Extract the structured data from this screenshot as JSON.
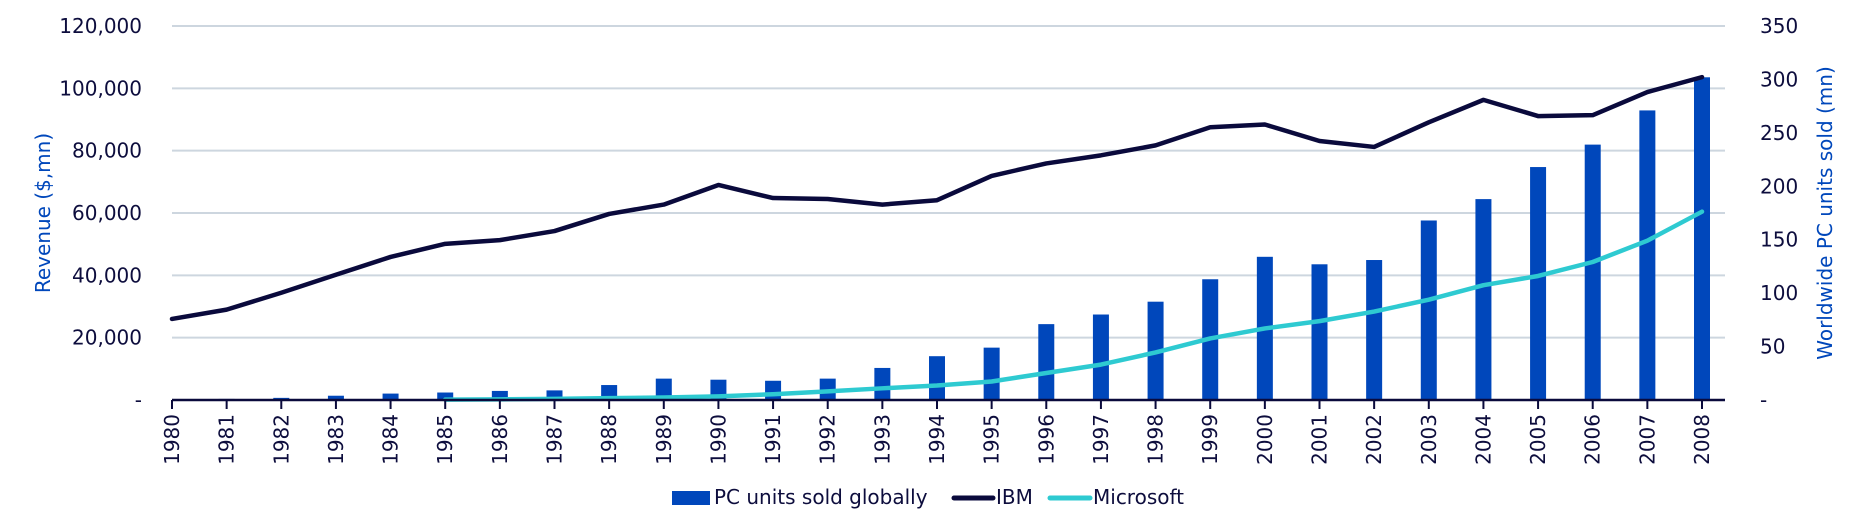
{
  "chart_data": {
    "type": "bar+line",
    "title": "",
    "categories": [
      "1980",
      "1981",
      "1982",
      "1983",
      "1984",
      "1985",
      "1986",
      "1987",
      "1988",
      "1989",
      "1990",
      "1991",
      "1992",
      "1993",
      "1994",
      "1995",
      "1996",
      "1997",
      "1998",
      "1999",
      "2000",
      "2001",
      "2002",
      "2003",
      "2004",
      "2005",
      "2006",
      "2007",
      "2008"
    ],
    "y_left": {
      "label": "Revenue ($,mn)",
      "range": [
        0,
        120000
      ],
      "ticks": [
        0,
        20000,
        40000,
        60000,
        80000,
        100000,
        120000
      ],
      "tick_labels": [
        "-",
        "20,000",
        "40,000",
        "60,000",
        "80,000",
        "100,000",
        "120,000"
      ]
    },
    "y_right": {
      "label": "Worldwide PC units sold (mn)",
      "range": [
        0,
        350
      ],
      "ticks": [
        0,
        50,
        100,
        150,
        200,
        250,
        300,
        350
      ],
      "tick_labels": [
        "-",
        "50",
        "100",
        "150",
        "200",
        "250",
        "300",
        "350"
      ]
    },
    "grid": true,
    "legend_position": "bottom-center",
    "series": [
      {
        "name": "PC units sold globally",
        "type": "bar",
        "axis": "right",
        "color": "#0047bb",
        "values": [
          0,
          1,
          2,
          4,
          6,
          7,
          8.5,
          9,
          14,
          20,
          19,
          18,
          20,
          30,
          41,
          49,
          71,
          80,
          92,
          113,
          134,
          127,
          131,
          168,
          188,
          218,
          239,
          271,
          302
        ]
      },
      {
        "name": "IBM",
        "type": "line",
        "axis": "left",
        "color": "#0a0a3c",
        "values": [
          26000,
          29000,
          34400,
          40200,
          45900,
          50100,
          51300,
          54200,
          59700,
          62700,
          69000,
          64800,
          64500,
          62700,
          64100,
          71900,
          75900,
          78500,
          81700,
          87500,
          88400,
          83100,
          81200,
          89100,
          96300,
          91100,
          91400,
          98800,
          103600
        ]
      },
      {
        "name": "Microsoft",
        "type": "line",
        "axis": "left",
        "color": "#2ecad1",
        "start_index": 5,
        "values": [
          null,
          null,
          null,
          null,
          null,
          140,
          200,
          350,
          590,
          800,
          1180,
          1840,
          2760,
          3750,
          4650,
          5940,
          8670,
          11360,
          15260,
          19750,
          22960,
          25300,
          28370,
          32190,
          36840,
          39790,
          44280,
          51120,
          60420
        ]
      }
    ]
  },
  "legend": {
    "items": [
      {
        "label": "PC units sold globally",
        "symbol": "bar-swatch"
      },
      {
        "label": "IBM",
        "symbol": "line-swatch"
      },
      {
        "label": "Microsoft",
        "symbol": "line-swatch"
      }
    ]
  },
  "colors": {
    "bar": "#0047bb",
    "ibm": "#0a0a3c",
    "microsoft": "#2ecad1",
    "grid": "#cdd6df",
    "axis": "#0a0a3c",
    "axis_title": "#0047bb",
    "text": "#0d0d3d"
  }
}
